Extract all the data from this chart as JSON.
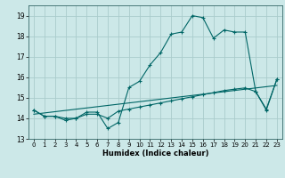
{
  "title": "",
  "xlabel": "Humidex (Indice chaleur)",
  "bg_color": "#cce8e8",
  "grid_color": "#aacccc",
  "line_color": "#006666",
  "xlim": [
    -0.5,
    23.5
  ],
  "ylim": [
    13.0,
    19.5
  ],
  "yticks": [
    13,
    14,
    15,
    16,
    17,
    18,
    19
  ],
  "xticks": [
    0,
    1,
    2,
    3,
    4,
    5,
    6,
    7,
    8,
    9,
    10,
    11,
    12,
    13,
    14,
    15,
    16,
    17,
    18,
    19,
    20,
    21,
    22,
    23
  ],
  "line1_x": [
    0,
    1,
    2,
    3,
    4,
    5,
    6,
    7,
    8,
    9,
    10,
    11,
    12,
    13,
    14,
    15,
    16,
    17,
    18,
    19,
    20,
    21,
    22,
    23
  ],
  "line1_y": [
    14.4,
    14.1,
    14.1,
    13.9,
    14.0,
    14.3,
    14.3,
    13.5,
    13.8,
    15.5,
    15.8,
    16.6,
    17.2,
    18.1,
    18.2,
    19.0,
    18.9,
    17.9,
    18.3,
    18.2,
    18.2,
    15.3,
    14.4,
    15.9
  ],
  "line2_x": [
    0,
    1,
    2,
    3,
    4,
    5,
    6,
    7,
    8,
    9,
    10,
    11,
    12,
    13,
    14,
    15,
    16,
    17,
    18,
    19,
    20,
    21,
    22,
    23
  ],
  "line2_y": [
    14.4,
    14.1,
    14.1,
    14.0,
    14.0,
    14.2,
    14.2,
    14.0,
    14.35,
    14.45,
    14.55,
    14.65,
    14.75,
    14.85,
    14.95,
    15.05,
    15.15,
    15.25,
    15.35,
    15.42,
    15.48,
    15.3,
    14.45,
    15.9
  ],
  "line3_x": [
    0,
    23
  ],
  "line3_y": [
    14.2,
    15.6
  ]
}
